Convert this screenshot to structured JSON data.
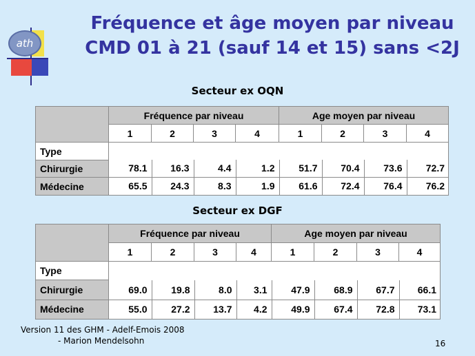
{
  "title": {
    "line1": "Fréquence et âge moyen par niveau",
    "line2": "CMD 01 à 21 (sauf 14 et 15) sans <2J"
  },
  "logo": {
    "icon": "ath-logo-icon",
    "text": "ath"
  },
  "tables": [
    {
      "sector": "Secteur ex OQN",
      "group_headers": [
        "Fréquence par niveau",
        "Age moyen par niveau"
      ],
      "levels": [
        "1",
        "2",
        "3",
        "4",
        "1",
        "2",
        "3",
        "4"
      ],
      "type_label": "Type",
      "rows": [
        {
          "label": "Chirurgie",
          "values": [
            "78.1",
            "16.3",
            "4.4",
            "1.2",
            "51.7",
            "70.4",
            "73.6",
            "72.7"
          ]
        },
        {
          "label": "Médecine",
          "values": [
            "65.5",
            "24.3",
            "8.3",
            "1.9",
            "61.6",
            "72.4",
            "76.4",
            "76.2"
          ]
        }
      ]
    },
    {
      "sector": "Secteur ex DGF",
      "group_headers": [
        "Fréquence par niveau",
        "Age moyen par niveau"
      ],
      "levels": [
        "1",
        "2",
        "3",
        "4",
        "1",
        "2",
        "3",
        "4"
      ],
      "type_label": "Type",
      "rows": [
        {
          "label": "Chirurgie",
          "values": [
            "69.0",
            "19.8",
            "8.0",
            "3.1",
            "47.9",
            "68.9",
            "67.7",
            "66.1"
          ]
        },
        {
          "label": "Médecine",
          "values": [
            "55.0",
            "27.2",
            "13.7",
            "4.2",
            "49.9",
            "67.4",
            "72.8",
            "73.1"
          ]
        }
      ]
    }
  ],
  "footer": {
    "line1": "Version 11 des GHM - Adelf-Emois 2008",
    "line2": "- Marion Mendelsohn"
  },
  "page_number": "16",
  "colors": {
    "title": "#3433a0",
    "background": "#d5ebfa",
    "header_cell": "#c8c8c8"
  }
}
